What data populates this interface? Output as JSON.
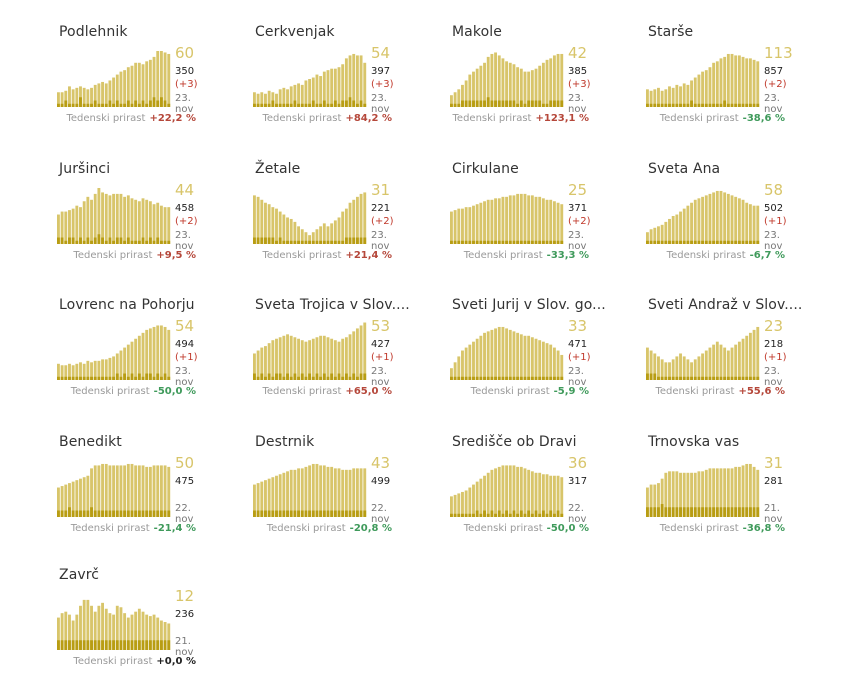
{
  "labels": {
    "weekly_growth": "Tedenski prirast"
  },
  "colors": {
    "bar": "#d8c56a",
    "bar_dark": "#b89d13",
    "increase": "#b5473a",
    "decrease": "#3f9a5b",
    "neutral": "#222222"
  },
  "chart_data": [
    {
      "type": "bar",
      "title": "Podlehnik",
      "active": "60",
      "total": "350",
      "delta": "(+3)",
      "date": "23. nov",
      "growth_label": "+22,2 %",
      "trend": "up",
      "values": [
        10,
        10,
        11,
        14,
        12,
        13,
        14,
        13,
        12,
        13,
        15,
        16,
        17,
        16,
        18,
        20,
        22,
        24,
        25,
        27,
        28,
        30,
        30,
        29,
        31,
        32,
        34,
        38,
        38,
        37,
        36
      ],
      "new_values": [
        1,
        1,
        2,
        1,
        1,
        1,
        3,
        1,
        1,
        1,
        2,
        1,
        1,
        1,
        2,
        1,
        2,
        1,
        1,
        2,
        1,
        2,
        1,
        2,
        1,
        2,
        3,
        2,
        3,
        2,
        1
      ]
    },
    {
      "type": "bar",
      "title": "Cerkvenjak",
      "active": "54",
      "total": "397",
      "delta": "(+3)",
      "date": "23. nov",
      "growth_label": "+84,2 %",
      "trend": "up",
      "values": [
        10,
        9,
        10,
        9,
        11,
        10,
        9,
        12,
        13,
        12,
        14,
        15,
        16,
        15,
        18,
        19,
        20,
        22,
        21,
        24,
        25,
        26,
        26,
        27,
        29,
        33,
        35,
        36,
        35,
        35,
        30
      ],
      "new_values": [
        1,
        1,
        1,
        1,
        1,
        2,
        1,
        1,
        1,
        1,
        1,
        2,
        1,
        1,
        1,
        1,
        2,
        1,
        1,
        2,
        1,
        1,
        2,
        1,
        2,
        2,
        3,
        2,
        1,
        2,
        1
      ]
    },
    {
      "type": "bar",
      "title": "Makole",
      "active": "42",
      "total": "385",
      "delta": "(+3)",
      "date": "23. nov",
      "growth_label": "+123,1 %",
      "trend": "up",
      "values": [
        8,
        10,
        12,
        15,
        18,
        22,
        24,
        26,
        28,
        30,
        34,
        36,
        37,
        35,
        33,
        31,
        30,
        29,
        27,
        26,
        24,
        24,
        25,
        26,
        28,
        30,
        32,
        33,
        35,
        36,
        36
      ],
      "new_values": [
        1,
        1,
        1,
        2,
        2,
        2,
        2,
        2,
        2,
        2,
        3,
        2,
        2,
        2,
        2,
        2,
        2,
        2,
        1,
        2,
        1,
        2,
        2,
        2,
        2,
        1,
        1,
        2,
        2,
        2,
        2
      ]
    },
    {
      "type": "bar",
      "title": "Starše",
      "active": "113",
      "total": "857",
      "delta": "(+2)",
      "date": "23. nov",
      "growth_label": "-38,6 %",
      "trend": "down",
      "values": [
        12,
        11,
        12,
        13,
        11,
        12,
        14,
        13,
        15,
        14,
        16,
        15,
        18,
        20,
        22,
        24,
        25,
        27,
        30,
        31,
        33,
        34,
        36,
        36,
        35,
        35,
        34,
        33,
        33,
        32,
        31
      ],
      "new_values": [
        1,
        1,
        1,
        1,
        1,
        1,
        1,
        1,
        1,
        1,
        1,
        1,
        2,
        1,
        1,
        1,
        1,
        1,
        1,
        1,
        1,
        2,
        1,
        1,
        1,
        1,
        1,
        1,
        1,
        1,
        1
      ]
    },
    {
      "type": "bar",
      "title": "Juršinci",
      "active": "44",
      "total": "458",
      "delta": "(+2)",
      "date": "23. nov",
      "growth_label": "+9,5 %",
      "trend": "up",
      "values": [
        20,
        22,
        22,
        23,
        24,
        26,
        25,
        29,
        32,
        30,
        34,
        38,
        35,
        34,
        33,
        34,
        34,
        34,
        32,
        33,
        31,
        30,
        29,
        31,
        30,
        29,
        27,
        28,
        26,
        25,
        25
      ],
      "new_values": [
        2,
        2,
        1,
        2,
        2,
        1,
        2,
        1,
        2,
        1,
        2,
        3,
        2,
        1,
        2,
        1,
        2,
        2,
        1,
        2,
        1,
        1,
        1,
        2,
        1,
        2,
        1,
        2,
        1,
        1,
        1
      ]
    },
    {
      "type": "bar",
      "title": "Žetale",
      "active": "31",
      "total": "221",
      "delta": "(+2)",
      "date": "23. nov",
      "growth_label": "+21,4 %",
      "trend": "up",
      "values": [
        33,
        32,
        30,
        28,
        27,
        25,
        24,
        22,
        20,
        18,
        17,
        15,
        12,
        10,
        8,
        6,
        8,
        10,
        12,
        14,
        12,
        14,
        16,
        18,
        22,
        24,
        28,
        30,
        32,
        34,
        35
      ],
      "new_values": [
        2,
        2,
        2,
        2,
        2,
        2,
        1,
        2,
        1,
        1,
        1,
        1,
        1,
        1,
        1,
        1,
        1,
        1,
        1,
        1,
        1,
        1,
        1,
        1,
        1,
        2,
        2,
        2,
        2,
        2,
        2
      ]
    },
    {
      "type": "bar",
      "title": "Cirkulane",
      "active": "25",
      "total": "371",
      "delta": "(+2)",
      "date": "23. nov",
      "growth_label": "-33,3 %",
      "trend": "down",
      "values": [
        22,
        23,
        24,
        24,
        25,
        25,
        26,
        27,
        28,
        29,
        30,
        30,
        31,
        31,
        32,
        32,
        33,
        33,
        34,
        34,
        34,
        33,
        33,
        32,
        32,
        31,
        30,
        30,
        29,
        28,
        27
      ],
      "new_values": [
        1,
        1,
        1,
        1,
        1,
        1,
        1,
        1,
        1,
        1,
        1,
        1,
        1,
        1,
        1,
        1,
        1,
        1,
        1,
        1,
        1,
        1,
        1,
        1,
        1,
        1,
        1,
        1,
        1,
        1,
        1
      ]
    },
    {
      "type": "bar",
      "title": "Sveta Ana",
      "active": "58",
      "total": "502",
      "delta": "(+1)",
      "date": "23. nov",
      "growth_label": "-6,7 %",
      "trend": "down",
      "values": [
        8,
        10,
        11,
        12,
        13,
        15,
        17,
        19,
        20,
        22,
        24,
        26,
        28,
        30,
        31,
        32,
        33,
        34,
        35,
        36,
        36,
        35,
        34,
        33,
        32,
        31,
        30,
        28,
        27,
        26,
        26
      ],
      "new_values": [
        1,
        1,
        1,
        1,
        1,
        1,
        1,
        1,
        1,
        1,
        1,
        1,
        1,
        1,
        1,
        1,
        1,
        1,
        1,
        1,
        1,
        1,
        1,
        1,
        1,
        1,
        1,
        1,
        1,
        1,
        1
      ]
    },
    {
      "type": "bar",
      "title": "Lovrenc na Pohorju",
      "active": "54",
      "total": "494",
      "delta": "(+1)",
      "date": "23. nov",
      "growth_label": "-50,0 %",
      "trend": "down",
      "values": [
        11,
        10,
        10,
        11,
        10,
        11,
        12,
        11,
        13,
        12,
        13,
        13,
        14,
        14,
        15,
        16,
        18,
        20,
        22,
        24,
        26,
        28,
        30,
        32,
        34,
        35,
        36,
        37,
        37,
        36,
        34
      ],
      "new_values": [
        1,
        1,
        1,
        1,
        1,
        1,
        1,
        1,
        1,
        1,
        1,
        1,
        1,
        1,
        1,
        1,
        2,
        1,
        2,
        1,
        2,
        1,
        2,
        1,
        2,
        2,
        1,
        2,
        1,
        2,
        1
      ]
    },
    {
      "type": "bar",
      "title": "Sveta Trojica v Slov....",
      "active": "53",
      "total": "427",
      "delta": "(+1)",
      "date": "23. nov",
      "growth_label": "+65,0 %",
      "trend": "up",
      "values": [
        18,
        20,
        22,
        23,
        25,
        27,
        28,
        29,
        30,
        31,
        30,
        29,
        28,
        27,
        26,
        27,
        28,
        29,
        30,
        30,
        29,
        28,
        27,
        26,
        28,
        29,
        31,
        33,
        35,
        37,
        39
      ],
      "new_values": [
        2,
        1,
        2,
        1,
        2,
        1,
        2,
        2,
        1,
        2,
        1,
        2,
        1,
        2,
        1,
        2,
        1,
        2,
        1,
        2,
        1,
        2,
        1,
        2,
        1,
        2,
        1,
        2,
        1,
        2,
        2
      ]
    },
    {
      "type": "bar",
      "title": "Sveti Jurij v Slov. go...",
      "active": "33",
      "total": "471",
      "delta": "(+1)",
      "date": "23. nov",
      "growth_label": "-5,9 %",
      "trend": "down",
      "values": [
        8,
        12,
        16,
        20,
        22,
        24,
        26,
        28,
        30,
        32,
        33,
        34,
        35,
        36,
        36,
        35,
        34,
        33,
        32,
        31,
        30,
        30,
        29,
        28,
        27,
        26,
        25,
        24,
        22,
        20,
        17
      ],
      "new_values": [
        1,
        1,
        1,
        1,
        1,
        1,
        1,
        1,
        1,
        1,
        1,
        1,
        1,
        1,
        1,
        1,
        1,
        1,
        1,
        1,
        1,
        1,
        1,
        1,
        1,
        1,
        1,
        1,
        1,
        1,
        1
      ]
    },
    {
      "type": "bar",
      "title": "Sveti Andraž v Slov....",
      "active": "23",
      "total": "218",
      "delta": "(+1)",
      "date": "23. nov",
      "growth_label": "+55,6 %",
      "trend": "up",
      "values": [
        22,
        20,
        18,
        16,
        14,
        12,
        12,
        14,
        16,
        18,
        16,
        14,
        12,
        14,
        16,
        18,
        20,
        22,
        24,
        26,
        24,
        22,
        20,
        22,
        24,
        26,
        28,
        30,
        32,
        34,
        36
      ],
      "new_values": [
        2,
        2,
        2,
        1,
        1,
        1,
        1,
        1,
        1,
        1,
        1,
        1,
        1,
        1,
        1,
        1,
        1,
        1,
        1,
        1,
        1,
        1,
        1,
        1,
        1,
        1,
        1,
        1,
        1,
        1,
        1
      ]
    },
    {
      "type": "bar",
      "title": "Benedikt",
      "active": "50",
      "total": "475",
      "delta": "",
      "date": "22. nov",
      "growth_label": "-21,4 %",
      "trend": "down",
      "values": [
        20,
        21,
        22,
        23,
        24,
        25,
        26,
        27,
        28,
        33,
        35,
        35,
        36,
        36,
        35,
        35,
        35,
        35,
        35,
        36,
        36,
        35,
        35,
        35,
        34,
        34,
        35,
        35,
        35,
        35,
        34
      ],
      "new_values": [
        2,
        2,
        2,
        3,
        2,
        2,
        2,
        2,
        2,
        3,
        2,
        2,
        2,
        2,
        2,
        2,
        2,
        2,
        2,
        2,
        2,
        2,
        2,
        2,
        2,
        2,
        2,
        2,
        2,
        2,
        2
      ]
    },
    {
      "type": "bar",
      "title": "Destrnik",
      "active": "43",
      "total": "499",
      "delta": "",
      "date": "22. nov",
      "growth_label": "-20,8 %",
      "trend": "down",
      "values": [
        22,
        23,
        24,
        25,
        26,
        27,
        28,
        29,
        30,
        31,
        32,
        32,
        33,
        33,
        34,
        35,
        36,
        36,
        35,
        35,
        34,
        34,
        33,
        33,
        32,
        32,
        32,
        33,
        33,
        33,
        33
      ],
      "new_values": [
        2,
        2,
        2,
        2,
        2,
        2,
        2,
        2,
        2,
        2,
        2,
        2,
        2,
        2,
        2,
        2,
        2,
        2,
        2,
        2,
        2,
        2,
        2,
        2,
        2,
        2,
        2,
        2,
        2,
        2,
        2
      ]
    },
    {
      "type": "bar",
      "title": "Središče ob Dravi",
      "active": "36",
      "total": "317",
      "delta": "",
      "date": "22. nov",
      "growth_label": "-50,0 %",
      "trend": "down",
      "values": [
        14,
        15,
        16,
        17,
        18,
        20,
        22,
        24,
        26,
        28,
        30,
        32,
        33,
        34,
        35,
        35,
        35,
        35,
        34,
        34,
        33,
        32,
        31,
        30,
        30,
        29,
        29,
        28,
        28,
        28,
        27
      ],
      "new_values": [
        1,
        1,
        1,
        1,
        1,
        1,
        1,
        2,
        1,
        2,
        1,
        2,
        1,
        2,
        1,
        2,
        1,
        2,
        1,
        2,
        1,
        2,
        1,
        2,
        1,
        2,
        1,
        2,
        1,
        2,
        1
      ]
    },
    {
      "type": "bar",
      "title": "Trnovska vas",
      "active": "31",
      "total": "281",
      "delta": "",
      "date": "21. nov",
      "growth_label": "-36,8 %",
      "trend": "down",
      "values": [
        20,
        22,
        22,
        23,
        26,
        30,
        31,
        31,
        31,
        30,
        30,
        30,
        30,
        30,
        31,
        31,
        32,
        33,
        33,
        33,
        33,
        33,
        33,
        33,
        34,
        34,
        35,
        36,
        36,
        34,
        32
      ],
      "new_values": [
        3,
        3,
        3,
        3,
        4,
        3,
        3,
        3,
        3,
        3,
        3,
        3,
        3,
        3,
        3,
        3,
        3,
        3,
        3,
        3,
        3,
        3,
        3,
        3,
        3,
        3,
        3,
        3,
        3,
        3,
        3
      ]
    },
    {
      "type": "bar",
      "title": "Zavrč",
      "active": "12",
      "total": "236",
      "delta": "",
      "date": "21. nov",
      "growth_label": "+0,0 %",
      "trend": "flat",
      "values": [
        22,
        25,
        26,
        24,
        20,
        24,
        30,
        34,
        34,
        30,
        26,
        30,
        32,
        28,
        25,
        24,
        30,
        29,
        25,
        22,
        24,
        26,
        28,
        26,
        24,
        23,
        24,
        22,
        20,
        19,
        18
      ],
      "new_values": [
        3,
        3,
        3,
        3,
        3,
        3,
        3,
        3,
        3,
        3,
        3,
        3,
        3,
        3,
        3,
        3,
        3,
        3,
        3,
        3,
        3,
        3,
        3,
        3,
        3,
        3,
        3,
        3,
        3,
        3,
        3
      ]
    }
  ]
}
